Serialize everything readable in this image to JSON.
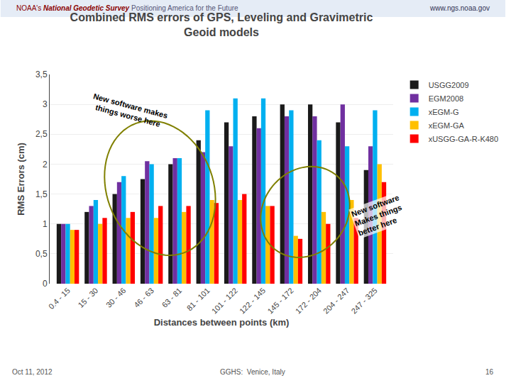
{
  "chart_data": {
    "type": "bar",
    "title": "Combined RMS errors of GPS, Leveling and Gravimetric\nGeoid models",
    "xlabel": "Distances between points (km)",
    "ylabel": "RMS Errors (cm)",
    "categories": [
      "0.4 - 15",
      "15 - 30",
      "30 - 46",
      "46 - 63",
      "63 - 81",
      "81 - 101",
      "101 - 122",
      "122 - 145",
      "145 - 172",
      "172 - 204",
      "204 - 247",
      "247 - 325"
    ],
    "series": [
      {
        "name": "USGG2009",
        "color": "#1a1a1a",
        "values": [
          1.0,
          1.2,
          1.5,
          1.75,
          2.0,
          2.4,
          2.7,
          2.8,
          3.0,
          3.0,
          2.7,
          1.9
        ]
      },
      {
        "name": "EGM2008",
        "color": "#7030a0",
        "values": [
          1.0,
          1.3,
          1.7,
          2.05,
          2.1,
          2.2,
          2.3,
          2.6,
          2.8,
          2.8,
          3.0,
          2.3
        ]
      },
      {
        "name": "xEGM-G",
        "color": "#00b0f0",
        "values": [
          1.0,
          1.4,
          1.8,
          2.0,
          2.1,
          2.9,
          3.1,
          3.1,
          2.9,
          2.4,
          2.3,
          2.9
        ]
      },
      {
        "name": "xEGM-GA",
        "color": "#ffc000",
        "values": [
          0.9,
          1.0,
          1.1,
          1.1,
          1.2,
          1.4,
          1.4,
          1.3,
          0.8,
          1.2,
          1.4,
          2.0
        ]
      },
      {
        "name": "xUSGG-GA-R-K480",
        "color": "#ff0000",
        "values": [
          0.9,
          1.1,
          1.2,
          1.3,
          1.3,
          1.35,
          1.5,
          1.3,
          0.75,
          1.0,
          1.1,
          1.7
        ]
      }
    ],
    "ylim": [
      0,
      3.5
    ],
    "yticks": [
      0,
      {
        "value": 0.5,
        "label": "0,5"
      },
      1,
      {
        "value": 1.5,
        "label": "1,5"
      },
      2,
      {
        "value": 2.5,
        "label": "2,5"
      },
      3,
      {
        "value": 3.5,
        "label": "3,5"
      }
    ],
    "grid": true,
    "legend": "right",
    "annotations": [
      "New software makes\nthings worse here",
      "New software\nMakes things\nbetter here",
      "NOAA's",
      "National Geodetic Survey",
      "Positioning America for the Future",
      "www.ngs.noaa.gov",
      "Oct 11, 2012",
      "GGHS:  Venice, Italy",
      "16"
    ]
  }
}
